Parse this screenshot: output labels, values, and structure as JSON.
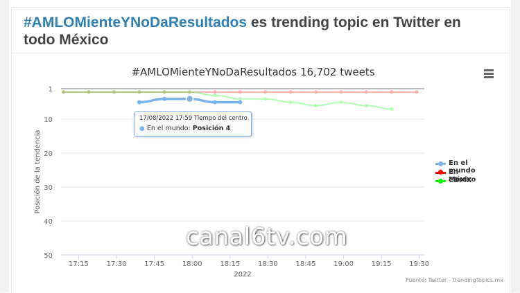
{
  "article": {
    "headline_hashtag": "#AMLOMienteYNoDaResultados",
    "headline_rest": " es trending topic en Twitter en todo México"
  },
  "watermark": "canal6tv.com",
  "tooltip": {
    "header": "17/08/2022 17:59 Tiempo del centro",
    "series_label": "En el mundo: ",
    "value_label": "Posición 4"
  },
  "credits": "Fuente: Twitter - TrendingTopics.mx",
  "menu_icon": "hamburger-menu-icon",
  "colors": {
    "en_el_mundo": "#7cb5ec",
    "en_mexico": "#ff0000",
    "cdmx": "#00ff00",
    "headline_accent": "#2f7fb3"
  },
  "chart_data": {
    "type": "line",
    "title": "#AMLOMienteYNoDaResultados 16,702 tweets",
    "xlabel": "2022",
    "ylabel": "Posición de la tendencia",
    "x_ticks": [
      "17:15",
      "17:30",
      "17:45",
      "18:00",
      "18:15",
      "18:30",
      "18:45",
      "19:00",
      "19:15",
      "19:30"
    ],
    "y_ticks": [
      1,
      10,
      20,
      30,
      40,
      50
    ],
    "ylim": [
      1,
      50
    ],
    "y_reversed": true,
    "xlim": [
      "17:08",
      "19:32"
    ],
    "legend_position": "right",
    "series": [
      {
        "name": "En el mundo",
        "color": "#7cb5ec",
        "faded": false,
        "x": [
          "17:39",
          "17:49",
          "17:59",
          "18:09",
          "18:19"
        ],
        "y": [
          5,
          4,
          4,
          5,
          5
        ]
      },
      {
        "name": "En México",
        "color": "#ff0000",
        "faded": true,
        "x": [
          "17:09",
          "17:19",
          "17:29",
          "17:39",
          "17:49",
          "17:59",
          "18:09",
          "18:19",
          "18:29",
          "18:39",
          "18:49",
          "18:59",
          "19:09",
          "19:19",
          "19:29"
        ],
        "y": [
          2,
          2,
          2,
          2,
          2,
          2,
          2,
          2,
          2,
          2,
          2,
          2,
          2,
          2,
          2
        ]
      },
      {
        "name": "CDMX",
        "color": "#00ff00",
        "faded": true,
        "x": [
          "17:09",
          "17:19",
          "17:29",
          "17:39",
          "17:49",
          "17:59",
          "18:09",
          "18:19",
          "18:29",
          "18:39",
          "18:49",
          "18:59",
          "19:09",
          "19:19"
        ],
        "y": [
          2,
          2,
          2,
          2,
          2,
          2,
          3,
          4,
          4,
          5,
          6,
          5,
          6,
          7
        ]
      }
    ]
  }
}
